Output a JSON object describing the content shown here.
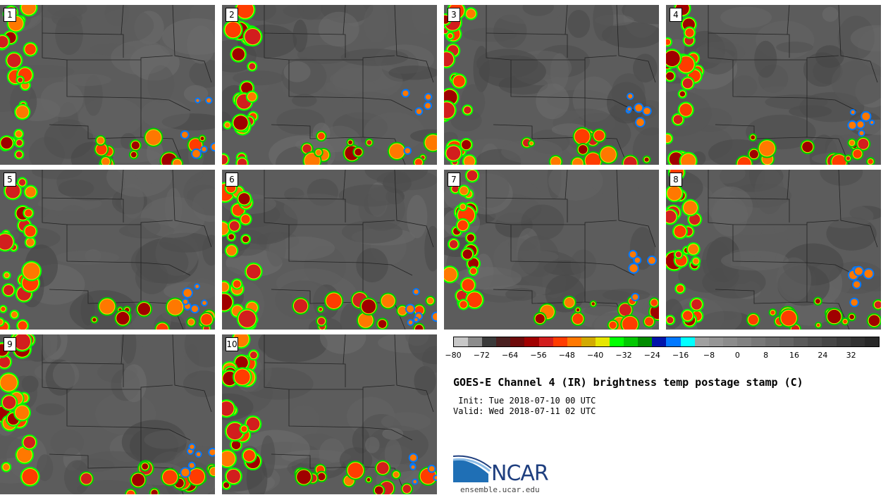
{
  "panels": [
    "1",
    "2",
    "3",
    "4",
    "5",
    "6",
    "7",
    "8",
    "9",
    "10"
  ],
  "colorbar": {
    "colors": [
      "#c8c8c8",
      "#8c8c8c",
      "#3a3a3a",
      "#4a2020",
      "#6e0a0a",
      "#a00000",
      "#d21e1e",
      "#ff3c00",
      "#ff7800",
      "#d2aa00",
      "#e6e600",
      "#00ff00",
      "#00c800",
      "#008c00",
      "#0014aa",
      "#0078ff",
      "#00ffff",
      "#a0a0a0",
      "#969696",
      "#8c8c8c",
      "#828282",
      "#787878",
      "#6e6e6e",
      "#646464",
      "#5a5a5a",
      "#505050",
      "#464646",
      "#3c3c3c",
      "#323232",
      "#282828"
    ],
    "tick_labels": [
      "−80",
      "−72",
      "−64",
      "−56",
      "−48",
      "−40",
      "−32",
      "−24",
      "−16",
      "−8",
      "0",
      "8",
      "16",
      "24",
      "32"
    ]
  },
  "title": "GOES-E Channel 4 (IR) brightness temp postage stamp (C)",
  "init": " Init: Tue 2018-07-10 00 UTC",
  "valid": "Valid: Wed 2018-07-11 02 UTC",
  "logo_text": "NCAR",
  "site": "ensemble.ucar.edu"
}
